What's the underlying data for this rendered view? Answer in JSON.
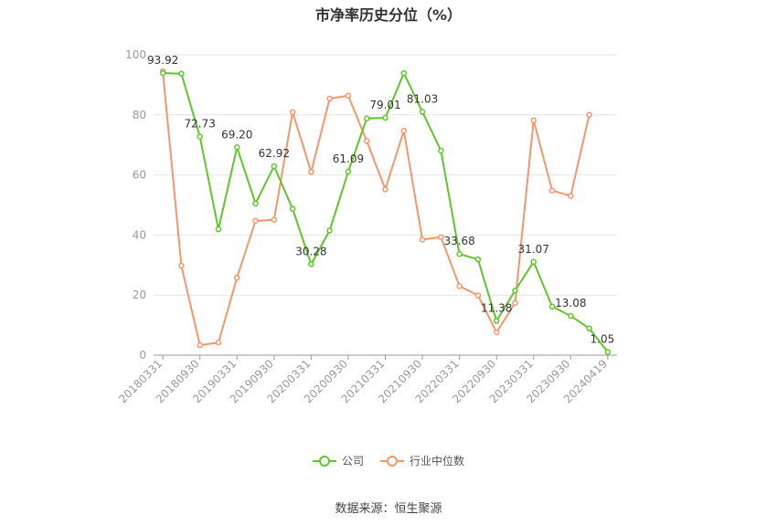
{
  "chart_data": {
    "type": "line",
    "title": "市净率历史分位（%）",
    "x": [
      "20180331",
      "20180630",
      "20180930",
      "20181231",
      "20190331",
      "20190630",
      "20190930",
      "20191231",
      "20200331",
      "20200630",
      "20200930",
      "20201231",
      "20210331",
      "20210630",
      "20210930",
      "20211231",
      "20220331",
      "20220630",
      "20220930",
      "20221231",
      "20230331",
      "20230630",
      "20230930",
      "20231231",
      "20240419"
    ],
    "x_tick_labels": [
      "20180331",
      "20180930",
      "20190331",
      "20190930",
      "20200331",
      "20200930",
      "20210331",
      "20210930",
      "20220331",
      "20220930",
      "20230331",
      "20230930",
      "20240419"
    ],
    "ylim": [
      0,
      100
    ],
    "yticks": [
      0,
      20,
      40,
      60,
      80,
      100
    ],
    "grid": true,
    "legend_position": "bottom",
    "series": [
      {
        "name": "公司",
        "color": "#5cc729",
        "values": [
          93.92,
          93.7,
          72.73,
          41.9,
          69.2,
          50.5,
          62.92,
          48.7,
          30.28,
          41.5,
          61.09,
          78.8,
          79.01,
          93.9,
          81.03,
          68.1,
          33.68,
          31.9,
          11.38,
          21.5,
          31.07,
          16.2,
          13.08,
          8.9,
          1.05
        ],
        "labels": [
          "93.92",
          null,
          "72.73",
          null,
          "69.20",
          null,
          "62.92",
          null,
          "30.28",
          null,
          "61.09",
          null,
          "79.01",
          null,
          "81.03",
          null,
          "33.68",
          null,
          "11.38",
          null,
          "31.07",
          null,
          "13.08",
          null,
          "1.05"
        ]
      },
      {
        "name": "行业中位数",
        "color": "#f5956a",
        "values": [
          94.5,
          29.8,
          3.3,
          4.2,
          25.8,
          44.7,
          45.1,
          80.9,
          61.0,
          85.4,
          86.4,
          71.3,
          55.2,
          74.7,
          38.5,
          39.3,
          23.0,
          19.9,
          7.6,
          17.4,
          78.2,
          54.8,
          53.0,
          80.0,
          null
        ]
      }
    ]
  },
  "legend": {
    "item1": "公司",
    "item2": "行业中位数"
  },
  "source": "数据来源：恒生聚源"
}
